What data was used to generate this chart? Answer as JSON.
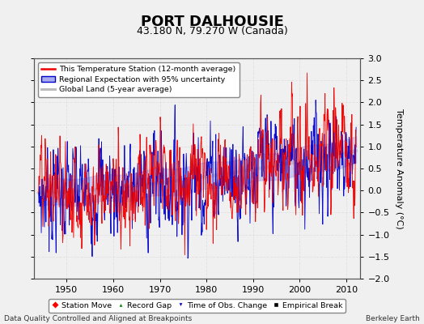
{
  "title": "PORT DALHOUSIE",
  "subtitle": "43.180 N, 79.270 W (Canada)",
  "ylabel": "Temperature Anomaly (°C)",
  "xlim": [
    1943,
    2013
  ],
  "ylim": [
    -2,
    3
  ],
  "yticks": [
    -2,
    -1.5,
    -1,
    -0.5,
    0,
    0.5,
    1,
    1.5,
    2,
    2.5,
    3
  ],
  "xticks": [
    1950,
    1960,
    1970,
    1980,
    1990,
    2000,
    2010
  ],
  "footer_left": "Data Quality Controlled and Aligned at Breakpoints",
  "footer_right": "Berkeley Earth",
  "legend1_entries": [
    "This Temperature Station (12-month average)",
    "Regional Expectation with 95% uncertainty",
    "Global Land (5-year average)"
  ],
  "legend2_entries": [
    "Station Move",
    "Record Gap",
    "Time of Obs. Change",
    "Empirical Break"
  ],
  "red_color": "#EE0000",
  "blue_color": "#0000CC",
  "blue_fill_color": "#AAAAEE",
  "gray_color": "#BBBBBB",
  "background_color": "#F0F0F0",
  "plot_bg_color": "#F0F0F0",
  "grid_color": "#DDDDDD",
  "title_fontsize": 13,
  "subtitle_fontsize": 9,
  "tick_fontsize": 8,
  "label_fontsize": 8
}
